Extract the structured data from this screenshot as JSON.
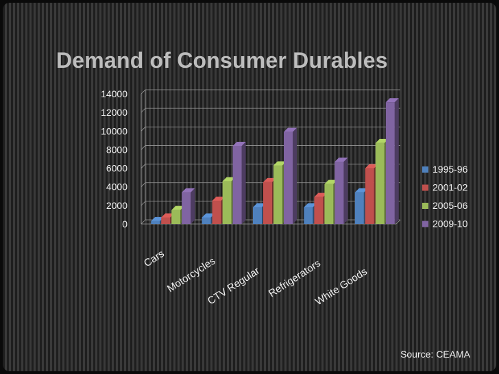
{
  "chart_data": {
    "type": "bar",
    "title": "Demand of Consumer Durables",
    "categories": [
      "Cars",
      "Motorcycles",
      "CTV Regular",
      "Refrigerators",
      "White Goods"
    ],
    "series": [
      {
        "name": "1995-96",
        "color": "#4f81bd",
        "values": [
          300,
          700,
          1800,
          1800,
          3400
        ]
      },
      {
        "name": "2001-02",
        "color": "#c0504d",
        "values": [
          700,
          2500,
          4500,
          2900,
          6000
        ]
      },
      {
        "name": "2005-06",
        "color": "#9bbb59",
        "values": [
          1500,
          4600,
          6300,
          4300,
          8700
        ]
      },
      {
        "name": "2009-10",
        "color": "#8064a2",
        "values": [
          3400,
          8400,
          9900,
          6700,
          13100
        ]
      }
    ],
    "ylim": [
      0,
      14000
    ],
    "yticks": [
      "14000",
      "12000",
      "10000",
      "8000",
      "6000",
      "4000",
      "2000",
      "0"
    ],
    "legend_position": "right",
    "grid": true,
    "style": "3d-clustered-column"
  },
  "source": "Source: CEAMA"
}
